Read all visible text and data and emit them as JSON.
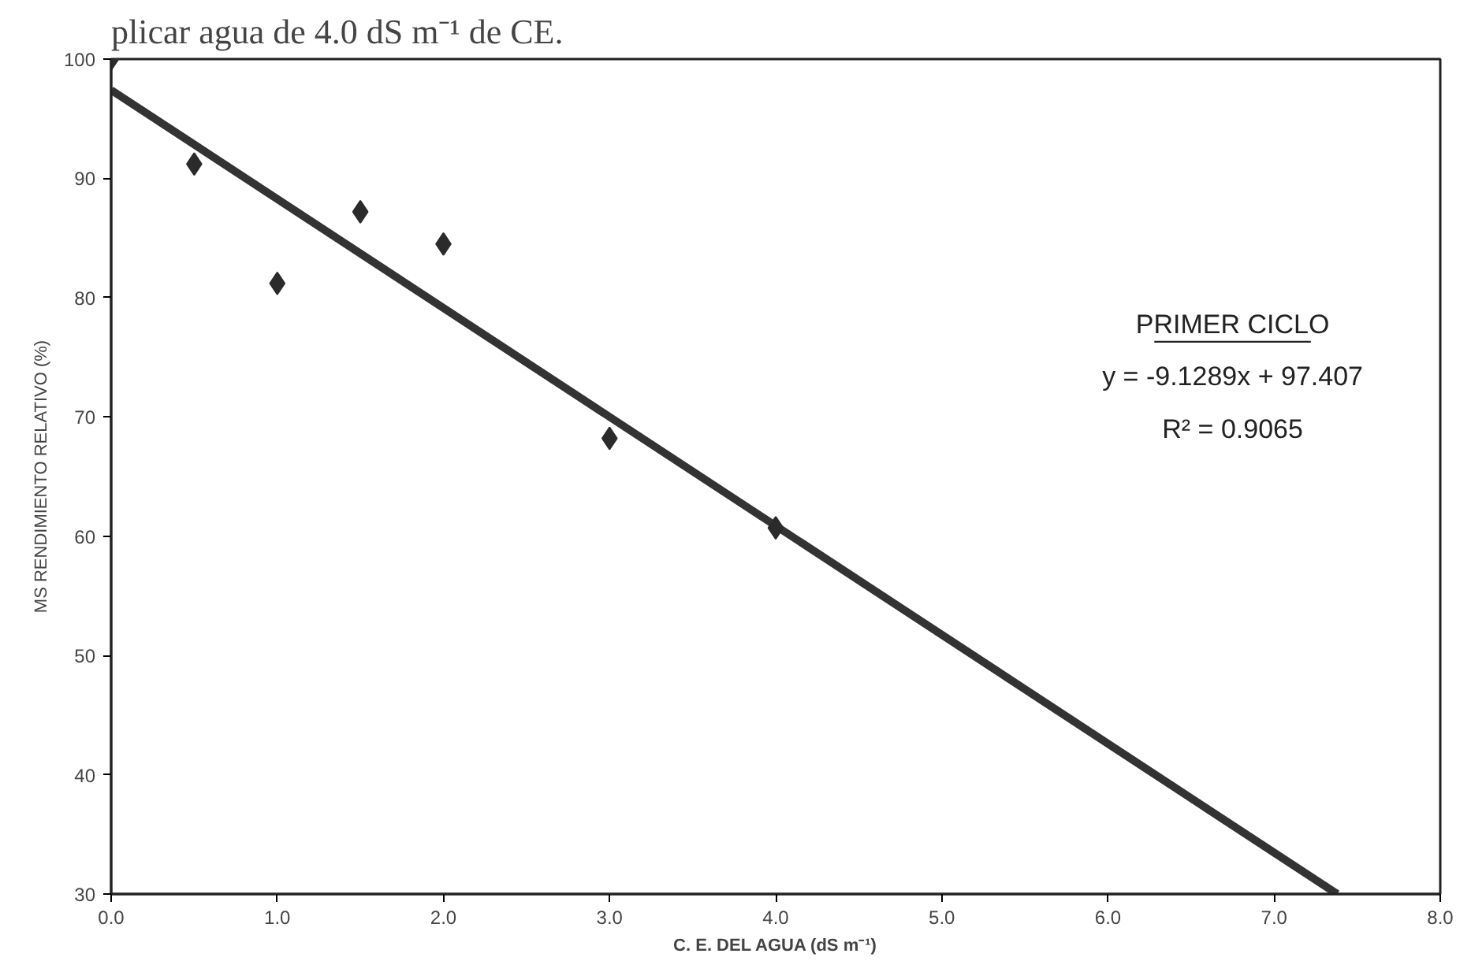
{
  "chart_data": {
    "type": "scatter",
    "title": "plicar agua de 4.0 dS m⁻¹ de CE.",
    "xlabel": "C. E. DEL AGUA (dS m⁻¹)",
    "ylabel": "MS RENDIMIENTO RELATIVO (%)",
    "x": [
      0,
      0.5,
      1.0,
      1.5,
      2.0,
      3.0,
      4.0
    ],
    "series": [
      {
        "color": "#2b2b2b",
        "marker": "diamond",
        "values": [
          100,
          91.2,
          81.2,
          87.2,
          84.5,
          68.2,
          60.7
        ]
      },
      {
        "type": "line",
        "color": "#333333",
        "line_style": "solid",
        "x": [
          0,
          7.38
        ],
        "values": [
          97.4,
          30
        ]
      }
    ],
    "xlim": [
      0,
      8
    ],
    "xticks": [
      {
        "value": 0,
        "label": "0.0"
      },
      {
        "value": 1,
        "label": "1.0"
      },
      {
        "value": 2,
        "label": "2.0"
      },
      {
        "value": 3,
        "label": "3.0"
      },
      {
        "value": 4,
        "label": "4.0"
      },
      {
        "value": 5,
        "label": "5.0"
      },
      {
        "value": 6,
        "label": "6.0"
      },
      {
        "value": 7,
        "label": "7.0"
      },
      {
        "value": 8,
        "label": "8.0"
      }
    ],
    "ylim": [
      30,
      100
    ],
    "yticks": [
      30,
      40,
      50,
      60,
      70,
      80,
      90,
      100
    ],
    "grid": false,
    "annotations": [
      "PRIMER CICLO",
      "y = -9.1289x + 97.407",
      "R² = 0.9065"
    ]
  }
}
